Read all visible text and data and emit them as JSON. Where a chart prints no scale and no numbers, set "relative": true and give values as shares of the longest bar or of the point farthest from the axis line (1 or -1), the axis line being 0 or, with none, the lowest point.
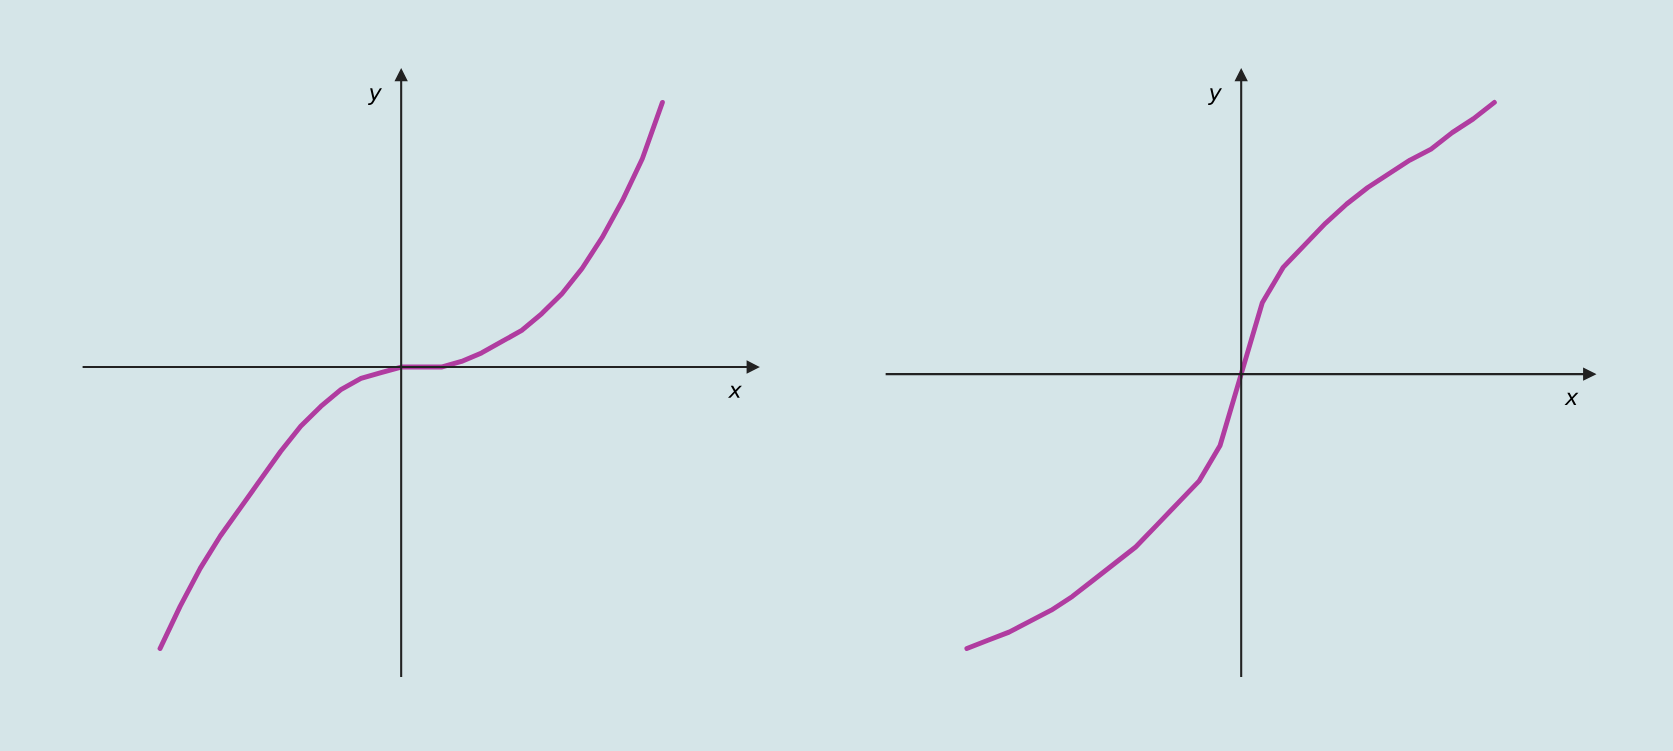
{
  "chart_data": [
    {
      "type": "line",
      "relative": true,
      "xlabel": "x",
      "ylabel": "y",
      "categories": [
        null,
        null,
        null,
        null,
        null,
        null,
        null,
        null,
        null,
        null,
        null,
        null,
        null,
        null,
        null,
        null,
        null,
        null,
        null,
        null,
        null,
        null,
        null,
        null,
        null,
        null
      ],
      "series": [
        {
          "color": "#b03ca0",
          "values": [
            -1,
            -0.85,
            -0.715,
            -0.6,
            -0.5,
            -0.4,
            -0.3,
            -0.21,
            -0.14,
            -0.08,
            -0.04,
            -0.02,
            0,
            0,
            0,
            0.02,
            0.05,
            0.09,
            0.13,
            0.19,
            0.26,
            0.35,
            0.46,
            0.59,
            0.74,
            0.94
          ]
        }
      ],
      "marker": "none",
      "line_style": "solid"
    },
    {
      "type": "line",
      "relative": true,
      "xlabel": "x",
      "ylabel": "y",
      "categories": [
        null,
        null,
        null,
        null,
        null,
        null,
        null,
        null,
        null,
        null,
        null,
        null,
        null,
        null,
        null,
        null,
        null,
        null,
        null,
        null,
        null,
        null,
        null,
        null,
        null,
        null
      ],
      "series": [
        {
          "color": "#b03ca0",
          "values": [
            -1,
            -0.97,
            -0.94,
            -0.9,
            -0.86,
            -0.81,
            -0.75,
            -0.69,
            -0.63,
            -0.55,
            -0.47,
            -0.39,
            -0.26,
            0,
            0.26,
            0.39,
            0.47,
            0.55,
            0.62,
            0.68,
            0.73,
            0.78,
            0.82,
            0.88,
            0.93,
            0.99
          ]
        }
      ],
      "marker": "none",
      "line_style": "solid"
    }
  ]
}
